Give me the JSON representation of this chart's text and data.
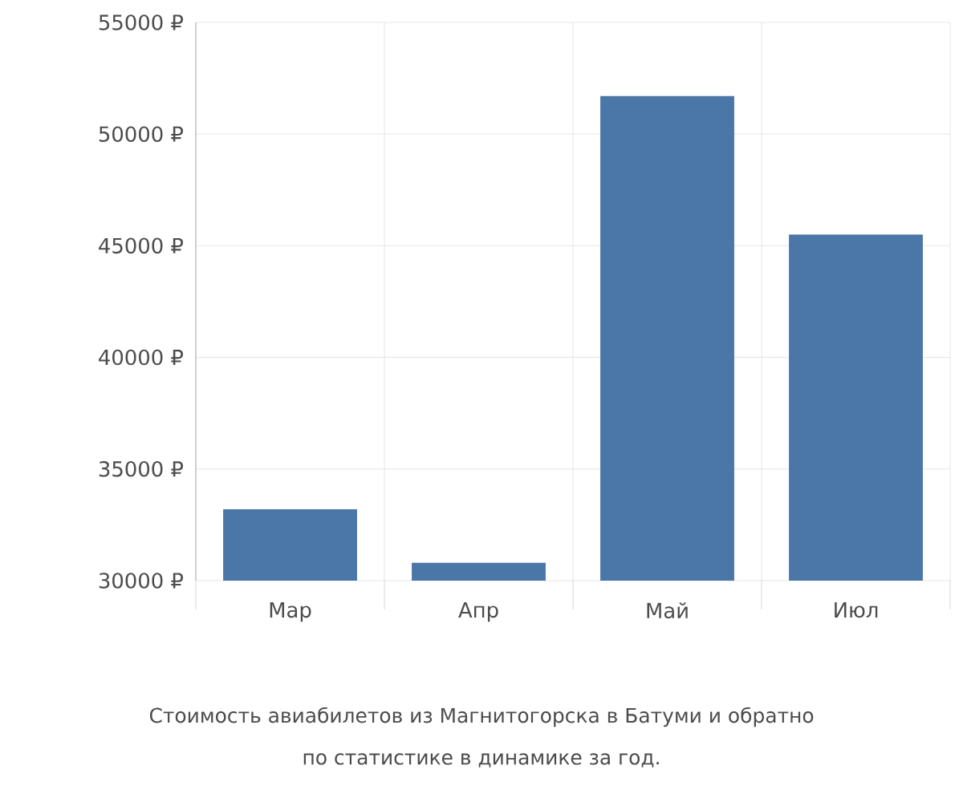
{
  "chart_data": {
    "type": "bar",
    "categories": [
      "Мар",
      "Апр",
      "Май",
      "Июл"
    ],
    "values": [
      33200,
      30800,
      51700,
      45500
    ],
    "color": "#4a76a8",
    "ylim": [
      30000,
      55000
    ],
    "yticks": [
      {
        "value": 30000,
        "label": "30000 ₽"
      },
      {
        "value": 35000,
        "label": "35000 ₽"
      },
      {
        "value": 40000,
        "label": "40000 ₽"
      },
      {
        "value": 45000,
        "label": "45000 ₽"
      },
      {
        "value": 50000,
        "label": "50000 ₽"
      },
      {
        "value": 55000,
        "label": "55000 ₽"
      }
    ],
    "grid": true,
    "annotations": [
      "Стоимость авиабилетов из Магнитогорска в Батуми и обратно",
      "по статистике в динамике за год."
    ]
  }
}
